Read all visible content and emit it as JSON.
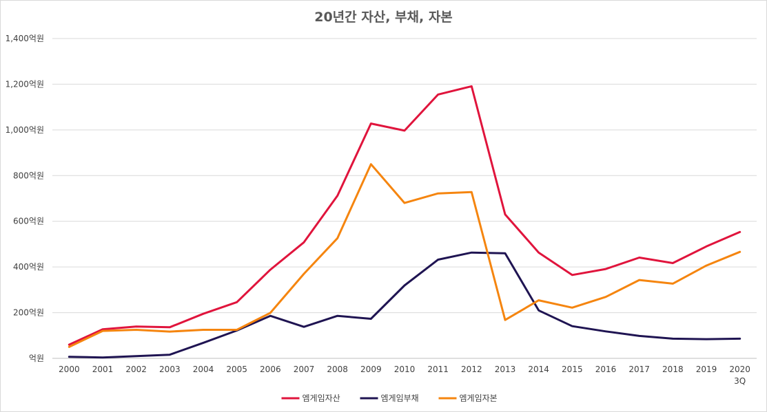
{
  "chart_data": {
    "type": "line",
    "title": "20년간 자산, 부채, 자본",
    "categories": [
      "2000",
      "2001",
      "2002",
      "2003",
      "2004",
      "2005",
      "2006",
      "2007",
      "2008",
      "2009",
      "2010",
      "2011",
      "2012",
      "2013",
      "2014",
      "2015",
      "2016",
      "2017",
      "2018",
      "2019",
      "2020\n3Q"
    ],
    "ylim": [
      0,
      1400
    ],
    "yticks": [
      {
        "value": 0,
        "label": "억원"
      },
      {
        "value": 200,
        "label": "200억원"
      },
      {
        "value": 400,
        "label": "400억원"
      },
      {
        "value": 600,
        "label": "600억원"
      },
      {
        "value": 800,
        "label": "800억원"
      },
      {
        "value": 1000,
        "label": "1,000억원"
      },
      {
        "value": 1200,
        "label": "1,200억원"
      },
      {
        "value": 1400,
        "label": "1,400억원"
      }
    ],
    "grid": true,
    "legend_position": "bottom",
    "series": [
      {
        "name": "엠게임자산",
        "color": "#e0143c",
        "values": [
          60,
          127,
          139,
          136,
          195,
          246,
          388,
          508,
          712,
          1028,
          997,
          1155,
          1191,
          630,
          463,
          365,
          391,
          441,
          417,
          490,
          553
        ]
      },
      {
        "name": "엠게임부채",
        "color": "#1f1452",
        "values": [
          7,
          4,
          10,
          16,
          68,
          122,
          186,
          138,
          186,
          173,
          319,
          432,
          463,
          460,
          210,
          141,
          118,
          98,
          86,
          84,
          86
        ]
      },
      {
        "name": "엠게임자본",
        "color": "#f5850f",
        "values": [
          50,
          120,
          125,
          117,
          125,
          125,
          199,
          370,
          526,
          850,
          680,
          722,
          728,
          168,
          254,
          222,
          269,
          343,
          327,
          406,
          466
        ]
      }
    ]
  }
}
